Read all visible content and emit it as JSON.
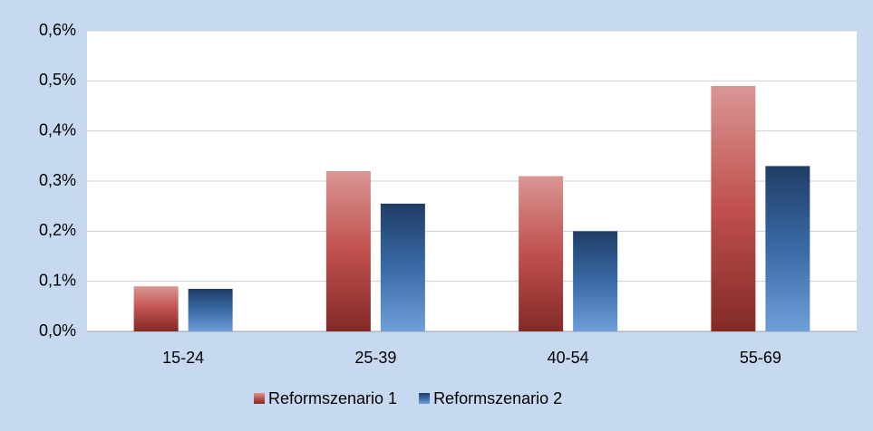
{
  "chart_data": {
    "type": "bar",
    "categories": [
      "15-24",
      "25-39",
      "40-54",
      "55-69"
    ],
    "series": [
      {
        "name": "Reformszenario 1",
        "color": "#c0504d",
        "values": [
          0.09,
          0.32,
          0.31,
          0.49
        ]
      },
      {
        "name": "Reformszenario 2",
        "color": "#2f5d95",
        "values": [
          0.085,
          0.255,
          0.2,
          0.33
        ]
      }
    ],
    "ylim": [
      0,
      0.6
    ],
    "yticks": [
      {
        "value": 0,
        "label": "0,0%"
      },
      {
        "value": 0.1,
        "label": "0,1%"
      },
      {
        "value": 0.2,
        "label": "0,2%"
      },
      {
        "value": 0.3,
        "label": "0,3%"
      },
      {
        "value": 0.4,
        "label": "0,4%"
      },
      {
        "value": 0.5,
        "label": "0,5%"
      },
      {
        "value": 0.6,
        "label": "0,6%"
      }
    ],
    "grid": true,
    "legend": "bottom"
  }
}
